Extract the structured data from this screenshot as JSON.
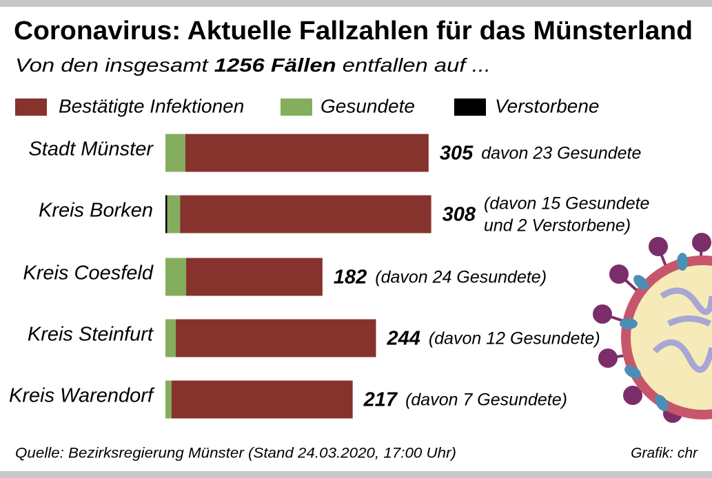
{
  "chart_data": {
    "type": "stacked-bar-horizontal",
    "title": "Coronavirus: Aktuelle Fallzahlen für das Münsterland",
    "subtitle": [
      "Von den insgesamt ",
      "1256 Fällen",
      " entfallen auf ..."
    ],
    "categories": [
      "Stadt Münster",
      "Kreis Borken",
      "Kreis Coesfeld",
      "Kreis Steinfurt",
      "Kreis Warendorf"
    ],
    "series": [
      {
        "name": "Bestätigte Infektionen",
        "color": "#86332e",
        "values": [
          282,
          291,
          158,
          232,
          210
        ]
      },
      {
        "name": "Gesundete",
        "color": "#84ae5e",
        "values": [
          23,
          15,
          24,
          12,
          7
        ]
      },
      {
        "name": "Verstorbene",
        "color": "#000000",
        "values": [
          0,
          2,
          0,
          0,
          0
        ]
      }
    ],
    "totals": [
      305,
      308,
      182,
      244,
      217
    ],
    "notes": [
      [
        "davon 23 Gesundete"
      ],
      [
        "(davon 15 Gesundete",
        "und 2 Verstorbene)"
      ],
      [
        "(davon 24 Gesundete)"
      ],
      [
        "(davon 12 Gesundete)"
      ],
      [
        "(davon 7 Gesundete)"
      ]
    ],
    "source": "Quelle: Bezirksregierung Münster (Stand 24.03.2020, 17:00 Uhr)",
    "credit": "Grafik: chr"
  }
}
